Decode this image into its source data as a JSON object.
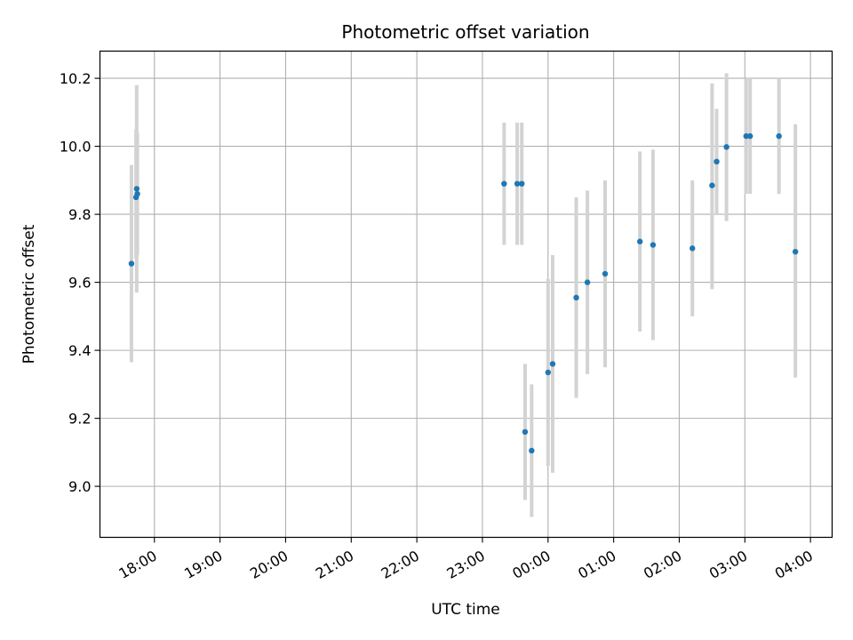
{
  "chart_data": {
    "type": "scatter",
    "title": "Photometric offset variation",
    "xlabel": "UTC time",
    "ylabel": "Photometric offset",
    "x_unit": "UTC time of day (hours past the 17:00 start of the plotted window; values above 24 fall after midnight)",
    "xlim": [
      17.17,
      28.33
    ],
    "ylim": [
      8.85,
      10.28
    ],
    "grid": true,
    "x_ticks": [
      {
        "value": 18,
        "label": "18:00"
      },
      {
        "value": 19,
        "label": "19:00"
      },
      {
        "value": 20,
        "label": "20:00"
      },
      {
        "value": 21,
        "label": "21:00"
      },
      {
        "value": 22,
        "label": "22:00"
      },
      {
        "value": 23,
        "label": "23:00"
      },
      {
        "value": 24,
        "label": "00:00"
      },
      {
        "value": 25,
        "label": "01:00"
      },
      {
        "value": 26,
        "label": "02:00"
      },
      {
        "value": 27,
        "label": "03:00"
      },
      {
        "value": 28,
        "label": "04:00"
      }
    ],
    "y_ticks": [
      {
        "value": 9.0,
        "label": "9.0"
      },
      {
        "value": 9.2,
        "label": "9.2"
      },
      {
        "value": 9.4,
        "label": "9.4"
      },
      {
        "value": 9.6,
        "label": "9.6"
      },
      {
        "value": 9.8,
        "label": "9.8"
      },
      {
        "value": 10.0,
        "label": "10.0"
      },
      {
        "value": 10.2,
        "label": "10.2"
      }
    ],
    "marker_color": "#1f77b4",
    "errorbar_color": "#d3d3d3",
    "points": [
      {
        "x": 17.65,
        "y": 9.655,
        "ylow": 9.365,
        "yhigh": 9.945
      },
      {
        "x": 17.72,
        "y": 9.85,
        "ylow": 9.67,
        "yhigh": 10.05
      },
      {
        "x": 17.73,
        "y": 9.875,
        "ylow": 9.57,
        "yhigh": 10.18
      },
      {
        "x": 17.74,
        "y": 9.86,
        "ylow": 9.68,
        "yhigh": 10.04
      },
      {
        "x": 23.33,
        "y": 9.89,
        "ylow": 9.71,
        "yhigh": 10.07
      },
      {
        "x": 23.53,
        "y": 9.89,
        "ylow": 9.71,
        "yhigh": 10.07
      },
      {
        "x": 23.6,
        "y": 9.89,
        "ylow": 9.71,
        "yhigh": 10.07
      },
      {
        "x": 23.65,
        "y": 9.16,
        "ylow": 8.96,
        "yhigh": 9.36
      },
      {
        "x": 23.75,
        "y": 9.105,
        "ylow": 8.91,
        "yhigh": 9.3
      },
      {
        "x": 24.0,
        "y": 9.335,
        "ylow": 9.06,
        "yhigh": 9.61
      },
      {
        "x": 24.07,
        "y": 9.36,
        "ylow": 9.04,
        "yhigh": 9.68
      },
      {
        "x": 24.43,
        "y": 9.555,
        "ylow": 9.26,
        "yhigh": 9.85
      },
      {
        "x": 24.6,
        "y": 9.6,
        "ylow": 9.33,
        "yhigh": 9.87
      },
      {
        "x": 24.87,
        "y": 9.625,
        "ylow": 9.35,
        "yhigh": 9.9
      },
      {
        "x": 25.4,
        "y": 9.72,
        "ylow": 9.455,
        "yhigh": 9.985
      },
      {
        "x": 25.6,
        "y": 9.71,
        "ylow": 9.43,
        "yhigh": 9.99
      },
      {
        "x": 26.2,
        "y": 9.7,
        "ylow": 9.5,
        "yhigh": 9.9
      },
      {
        "x": 26.5,
        "y": 9.885,
        "ylow": 9.58,
        "yhigh": 10.185
      },
      {
        "x": 26.57,
        "y": 9.955,
        "ylow": 9.8,
        "yhigh": 10.11
      },
      {
        "x": 26.72,
        "y": 9.998,
        "ylow": 9.78,
        "yhigh": 10.215
      },
      {
        "x": 27.02,
        "y": 10.03,
        "ylow": 9.86,
        "yhigh": 10.2
      },
      {
        "x": 27.08,
        "y": 10.03,
        "ylow": 9.86,
        "yhigh": 10.2
      },
      {
        "x": 27.52,
        "y": 10.03,
        "ylow": 9.86,
        "yhigh": 10.2
      },
      {
        "x": 27.77,
        "y": 9.69,
        "ylow": 9.32,
        "yhigh": 10.065
      }
    ]
  }
}
